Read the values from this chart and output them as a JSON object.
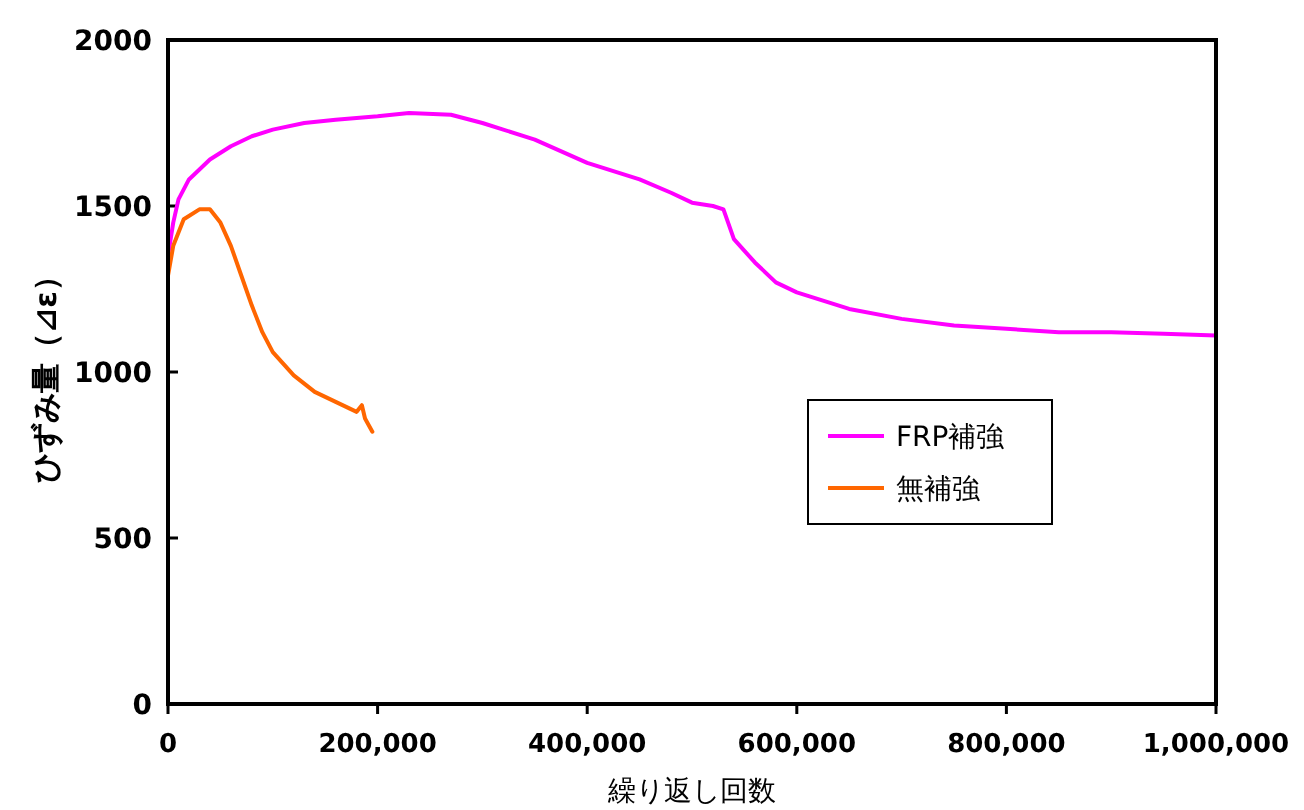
{
  "chart_data": {
    "type": "line",
    "xlabel": "繰り返し回数",
    "ylabel": "ひずみ量（⊿ε）",
    "xlim": [
      0,
      1000000
    ],
    "xticks": [
      {
        "value": 0,
        "label": "0"
      },
      {
        "value": 200000,
        "label": "200,000"
      },
      {
        "value": 400000,
        "label": "400,000"
      },
      {
        "value": 600000,
        "label": "600,000"
      },
      {
        "value": 800000,
        "label": "800,000"
      },
      {
        "value": 1000000,
        "label": "1,000,000"
      }
    ],
    "ylim": [
      0,
      2000
    ],
    "yticks": [
      0,
      500,
      1000,
      1500,
      2000
    ],
    "grid": false,
    "legend": "right",
    "marker": "none",
    "line_style": "solid",
    "series": [
      {
        "name": "FRP補強",
        "color": "#ff00ff",
        "x": [
          0,
          5000,
          10000,
          20000,
          40000,
          60000,
          80000,
          100000,
          130000,
          160000,
          200000,
          230000,
          270000,
          300000,
          350000,
          400000,
          450000,
          480000,
          500000,
          520000,
          530000,
          540000,
          560000,
          580000,
          600000,
          650000,
          700000,
          750000,
          800000,
          850000,
          900000,
          950000,
          1000000
        ],
        "values": [
          1350,
          1450,
          1520,
          1580,
          1640,
          1680,
          1710,
          1730,
          1750,
          1760,
          1770,
          1780,
          1775,
          1750,
          1700,
          1630,
          1580,
          1540,
          1510,
          1500,
          1490,
          1400,
          1330,
          1270,
          1240,
          1190,
          1160,
          1140,
          1130,
          1120,
          1120,
          1115,
          1110
        ]
      },
      {
        "name": "無補強",
        "color": "#ff6600",
        "x": [
          0,
          5000,
          15000,
          30000,
          40000,
          50000,
          60000,
          70000,
          80000,
          90000,
          100000,
          120000,
          140000,
          160000,
          180000,
          185000,
          188000,
          195000
        ],
        "values": [
          1290,
          1380,
          1460,
          1490,
          1490,
          1450,
          1380,
          1290,
          1200,
          1120,
          1060,
          990,
          940,
          910,
          880,
          900,
          860,
          820
        ]
      }
    ]
  }
}
